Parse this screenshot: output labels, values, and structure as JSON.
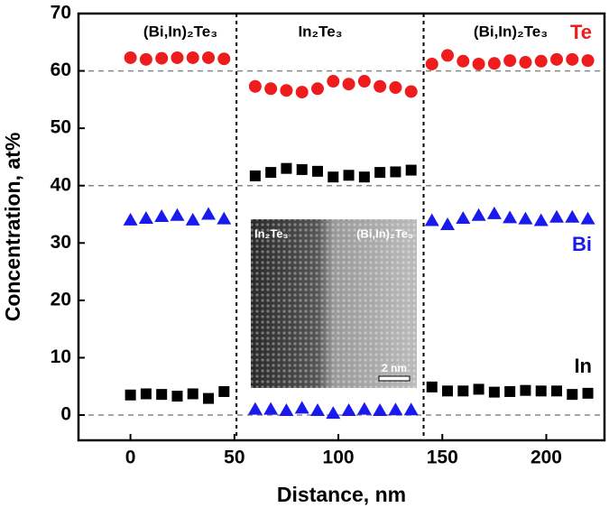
{
  "chart_data": {
    "type": "scatter",
    "xlabel": "Distance, nm",
    "ylabel": "Concentration, at%",
    "xlim": [
      -25,
      228
    ],
    "ylim": [
      -4.4,
      70
    ],
    "xticks": [
      0,
      50,
      100,
      150,
      200
    ],
    "yticks": [
      0,
      10,
      20,
      30,
      40,
      50,
      60,
      70
    ],
    "vlines": [
      51,
      141
    ],
    "hlines": [
      0,
      40,
      60
    ],
    "x": [
      0,
      7.5,
      15,
      22.5,
      30,
      37.5,
      45,
      60,
      67.5,
      75,
      82.5,
      90,
      97.5,
      105,
      112.5,
      120,
      127.5,
      135,
      145,
      152.5,
      160,
      167.5,
      175,
      182.5,
      190,
      197.5,
      205,
      212.5,
      220
    ],
    "series": [
      {
        "name": "Te",
        "color": "#ee1c1c",
        "marker": "circle",
        "values": [
          62.3,
          62,
          62.2,
          62.3,
          62.3,
          62.3,
          62.1,
          57.3,
          56.9,
          56.6,
          56.3,
          56.9,
          58.2,
          57.7,
          58.2,
          57.3,
          57.1,
          56.4,
          61.2,
          62.7,
          61.7,
          61.2,
          61.3,
          61.8,
          61.5,
          61.7,
          62,
          62,
          61.8
        ]
      },
      {
        "name": "Bi",
        "color": "#1a1aee",
        "marker": "triangle",
        "values": [
          34,
          34.3,
          34.6,
          34.8,
          34,
          35,
          34.2,
          1,
          1,
          0.8,
          1.2,
          0.8,
          0.3,
          0.8,
          1,
          0.8,
          0.9,
          0.9,
          33.9,
          33.2,
          34.3,
          34.8,
          35.1,
          34.4,
          34.2,
          33.9,
          34.5,
          34.5,
          34.2
        ]
      },
      {
        "name": "In",
        "color": "#000000",
        "marker": "square",
        "values": [
          3.5,
          3.7,
          3.6,
          3.3,
          3.7,
          2.9,
          4.1,
          41.7,
          42.3,
          43,
          42.8,
          42.5,
          41.5,
          41.8,
          41.5,
          42.3,
          42.4,
          42.7,
          4.9,
          4.2,
          4.2,
          4.5,
          4,
          4.1,
          4.3,
          4.2,
          4.2,
          3.6,
          3.8
        ]
      }
    ],
    "annotations": [
      "(Bi,In)₂Te₃",
      "In₂Te₃",
      "(Bi,In)₂Te₃"
    ],
    "inset": {
      "left_label": "In₂Te₃",
      "right_label": "(Bi,In)₂Te₃",
      "scale_bar": "2 nm"
    }
  }
}
